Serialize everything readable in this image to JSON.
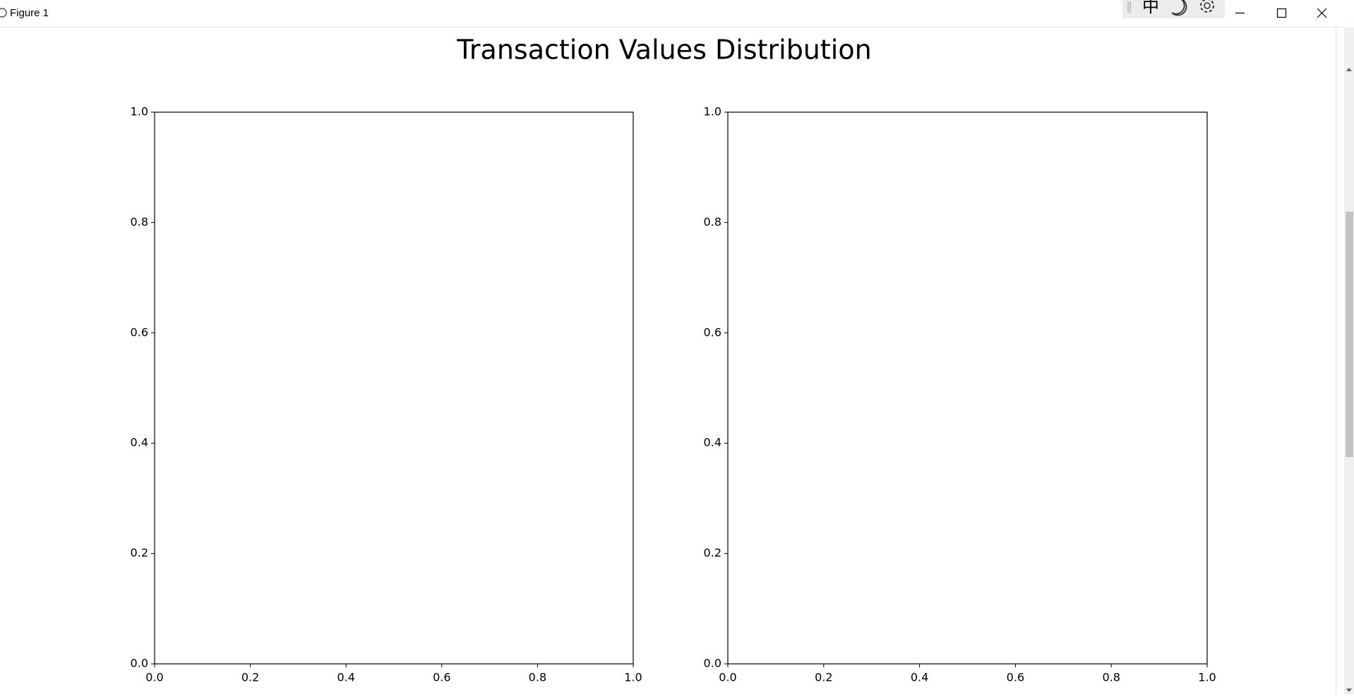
{
  "window": {
    "title": "Figure 1",
    "ime_label": "中"
  },
  "suptitle": "Transaction Values Distribution",
  "chart_data": [
    {
      "type": "hist",
      "xlim": [
        0,
        1
      ],
      "ylim": [
        0,
        1
      ],
      "xticks": [
        {
          "value": 0,
          "label": "0.0"
        },
        0.2,
        0.4,
        0.6,
        0.8,
        {
          "value": 1,
          "label": "1.0"
        }
      ],
      "yticks": [
        {
          "value": 0,
          "label": "0.0"
        },
        0.2,
        0.4,
        0.6,
        0.8,
        {
          "value": 1,
          "label": "1.0"
        }
      ]
    },
    {
      "type": "hist",
      "xlim": [
        0,
        1
      ],
      "ylim": [
        0,
        1
      ],
      "xticks": [
        {
          "value": 0,
          "label": "0.0"
        },
        0.2,
        0.4,
        0.6,
        0.8,
        {
          "value": 1,
          "label": "1.0"
        }
      ],
      "yticks": [
        {
          "value": 0,
          "label": "0.0"
        },
        0.2,
        0.4,
        0.6,
        0.8,
        {
          "value": 1,
          "label": "1.0"
        }
      ]
    }
  ]
}
